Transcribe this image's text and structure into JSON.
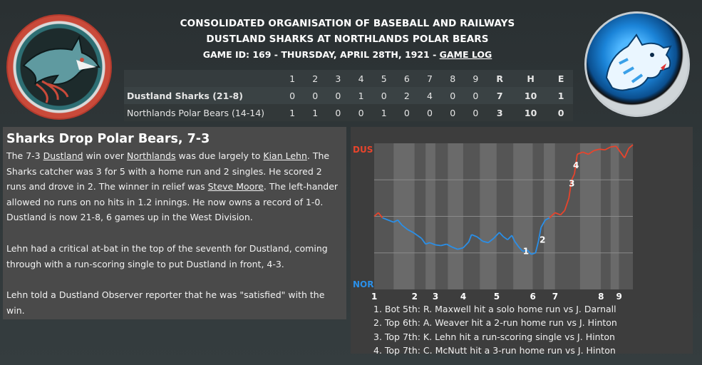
{
  "header": {
    "line1": "CONSOLIDATED ORGANISATION OF BASEBALL AND RAILWAYS",
    "line2": "DUSTLAND SHARKS AT NORTHLANDS POLAR BEARS",
    "game_info": "GAME ID: 169 - THURSDAY, APRIL 28TH, 1921 - ",
    "game_log_link": "GAME LOG"
  },
  "logos": {
    "away": "shark-logo-icon",
    "home": "polar-bear-logo-icon"
  },
  "linescore": {
    "columns": [
      "1",
      "2",
      "3",
      "4",
      "5",
      "6",
      "7",
      "8",
      "9",
      "R",
      "H",
      "E"
    ],
    "rows": [
      {
        "team": "Dustland Sharks (21-8)",
        "innings": [
          "0",
          "0",
          "0",
          "1",
          "0",
          "2",
          "4",
          "0",
          "0"
        ],
        "R": "7",
        "H": "10",
        "E": "1"
      },
      {
        "team": "Northlands Polar Bears (14-14)",
        "innings": [
          "1",
          "1",
          "0",
          "0",
          "1",
          "0",
          "0",
          "0",
          "0"
        ],
        "R": "3",
        "H": "10",
        "E": "0"
      }
    ]
  },
  "story": {
    "title": "Sharks Drop Polar Bears, 7-3",
    "p1": {
      "t1": "The 7-3 ",
      "l1": "Dustland",
      "t2": " win over ",
      "l2": "Northlands",
      "t3": " was due largely to ",
      "l3": "Kian Lehn",
      "t4": ". The Sharks catcher was 3 for 5 with a home run and 2 singles. He scored 2 runs and drove in 2. The winner in relief was ",
      "l4": "Steve Moore",
      "t5": ". The left-hander allowed no runs on no hits in 1.2 innings. He now owns a record of 1-0. Dustland is now 21-8, 6 games up in the West Division."
    },
    "p2": "Lehn had a critical at-bat in the top of the seventh for Dustland, coming through with a run-scoring single to put Dustland in front, 4-3.",
    "p3": "Lehn told a Dustland Observer reporter that he was \"satisfied\" with the win."
  },
  "chart_data": {
    "type": "line",
    "title": "",
    "y_top_label": "DUS",
    "y_bottom_label": "NOR",
    "away_color": "#e8442c",
    "home_color": "#2a8fe8",
    "innings": [
      "1",
      "2",
      "3",
      "4",
      "5",
      "6",
      "7",
      "8",
      "9"
    ],
    "x_inning_positions": [
      0.0,
      1.45,
      2.2,
      3.2,
      4.4,
      5.7,
      6.5,
      8.15,
      8.8
    ],
    "ylim": [
      -1,
      1
    ],
    "series": [
      {
        "x": 0.0,
        "y": 0.0
      },
      {
        "x": 0.15,
        "y": 0.05
      },
      {
        "x": 0.3,
        "y": -0.02
      },
      {
        "x": 0.5,
        "y": -0.05
      },
      {
        "x": 0.7,
        "y": -0.08
      },
      {
        "x": 0.85,
        "y": -0.05
      },
      {
        "x": 1.0,
        "y": -0.12
      },
      {
        "x": 1.2,
        "y": -0.18
      },
      {
        "x": 1.4,
        "y": -0.22
      },
      {
        "x": 1.55,
        "y": -0.26
      },
      {
        "x": 1.7,
        "y": -0.3
      },
      {
        "x": 1.85,
        "y": -0.38
      },
      {
        "x": 2.0,
        "y": -0.36
      },
      {
        "x": 2.2,
        "y": -0.39
      },
      {
        "x": 2.4,
        "y": -0.4
      },
      {
        "x": 2.6,
        "y": -0.38
      },
      {
        "x": 2.8,
        "y": -0.42
      },
      {
        "x": 3.0,
        "y": -0.45
      },
      {
        "x": 3.2,
        "y": -0.43
      },
      {
        "x": 3.4,
        "y": -0.35
      },
      {
        "x": 3.5,
        "y": -0.25
      },
      {
        "x": 3.7,
        "y": -0.28
      },
      {
        "x": 3.9,
        "y": -0.34
      },
      {
        "x": 4.1,
        "y": -0.36
      },
      {
        "x": 4.3,
        "y": -0.3
      },
      {
        "x": 4.5,
        "y": -0.22
      },
      {
        "x": 4.65,
        "y": -0.28
      },
      {
        "x": 4.8,
        "y": -0.32
      },
      {
        "x": 4.95,
        "y": -0.26
      },
      {
        "x": 5.05,
        "y": -0.34
      },
      {
        "x": 5.2,
        "y": -0.42
      },
      {
        "x": 5.35,
        "y": -0.48
      },
      {
        "x": 5.5,
        "y": -0.46
      },
      {
        "x": 5.65,
        "y": -0.52
      },
      {
        "x": 5.8,
        "y": -0.5
      },
      {
        "x": 5.9,
        "y": -0.35
      },
      {
        "x": 6.0,
        "y": -0.15
      },
      {
        "x": 6.15,
        "y": -0.05
      },
      {
        "x": 6.3,
        "y": -0.02
      },
      {
        "x": 6.5,
        "y": 0.05
      },
      {
        "x": 6.7,
        "y": 0.02
      },
      {
        "x": 6.85,
        "y": 0.08
      },
      {
        "x": 7.0,
        "y": 0.25
      },
      {
        "x": 7.1,
        "y": 0.5
      },
      {
        "x": 7.2,
        "y": 0.58
      },
      {
        "x": 7.3,
        "y": 0.85
      },
      {
        "x": 7.5,
        "y": 0.88
      },
      {
        "x": 7.7,
        "y": 0.85
      },
      {
        "x": 7.9,
        "y": 0.9
      },
      {
        "x": 8.1,
        "y": 0.92
      },
      {
        "x": 8.3,
        "y": 0.91
      },
      {
        "x": 8.5,
        "y": 0.95
      },
      {
        "x": 8.7,
        "y": 0.96
      },
      {
        "x": 8.85,
        "y": 0.88
      },
      {
        "x": 9.0,
        "y": 0.8
      },
      {
        "x": 9.15,
        "y": 0.93
      },
      {
        "x": 9.3,
        "y": 0.98
      }
    ],
    "markers": [
      {
        "label": "1",
        "x": 5.45,
        "y": -0.48
      },
      {
        "label": "2",
        "x": 6.05,
        "y": -0.32
      },
      {
        "label": "3",
        "x": 7.1,
        "y": 0.45
      },
      {
        "label": "4",
        "x": 7.25,
        "y": 0.7
      }
    ],
    "notes": [
      "1. Bot 5th: R. Maxwell hit a solo home run vs J. Darnall",
      "2. Top 6th: A. Weaver hit a 2-run home run vs J. Hinton",
      "3. Top 7th: K. Lehn hit a run-scoring single vs J. Hinton",
      "4. Top 7th: C. McNutt hit a 3-run home run vs J. Hinton"
    ]
  }
}
